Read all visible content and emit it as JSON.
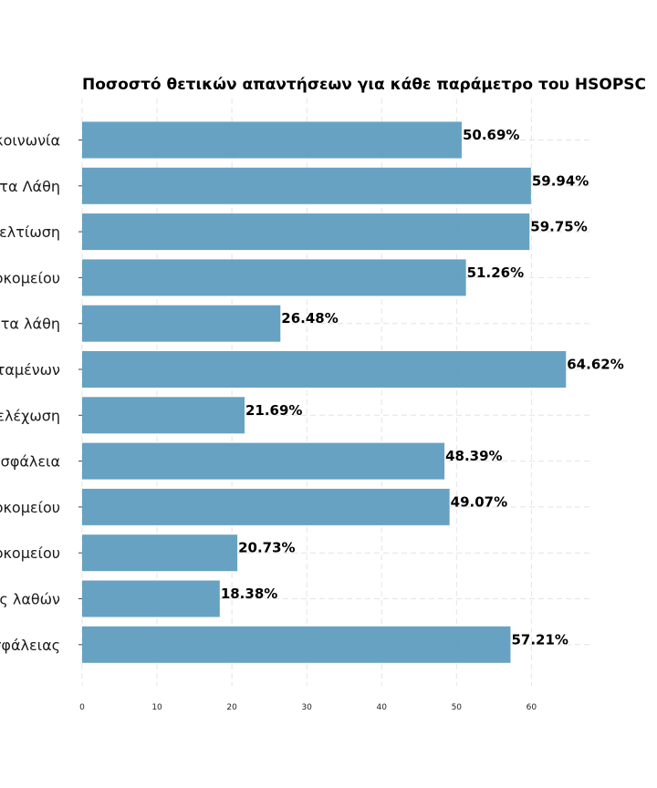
{
  "chart_data": {
    "type": "bar",
    "orientation": "horizontal",
    "title": "Ποσοστό θετικών απαντήσεων για κάθε παράμετρο του HSOPSC",
    "xlabel": "",
    "ylabel": "",
    "xlim": [
      0,
      68
    ],
    "x_ticks": [
      0,
      10,
      20,
      30,
      40,
      50,
      60
    ],
    "grid": true,
    "bar_color": "#5b9bbd",
    "categories": [
      "Ανοιχτή επικοινωνία",
      "Ανατροφοδότηση και επικοινωνία για τα Λάθη",
      "Οργανωσιακή μάθηση — Συνεχής βελτίωση",
      "Μεταφορά ασθενών και εναλλαγή βάρδιας εντός του νοσοκομείου",
      "Μη τιμωρητική αντιμετώπιση σε σχέση με τα λάθη",
      "Ομαδική εργασία μεταξύ των υπαλλήλων και των προϊσταμένων",
      "Στελέχωση",
      "Υποστήριξη από τη διοίκηση για την ασφάλεια",
      "Ομαδική εργασία μεταξύ των τμημάτων του νοσοκομείου",
      "Εναλλαγή βάρδιας και μεταφορά ασθενών εντός του νοσοκομείου",
      "Συχνότητα αναφοράς λαθών",
      "Συνολική αντίληψη για την ασφάλειας"
    ],
    "values": [
      50.69,
      59.94,
      59.75,
      51.26,
      26.48,
      64.62,
      21.69,
      48.39,
      49.07,
      20.73,
      18.38,
      57.21
    ],
    "value_labels": [
      "50.69%",
      "59.94%",
      "59.75%",
      "51.26%",
      "26.48%",
      "64.62%",
      "21.69%",
      "48.39%",
      "49.07%",
      "20.73%",
      "18.38%",
      "57.21%"
    ]
  }
}
